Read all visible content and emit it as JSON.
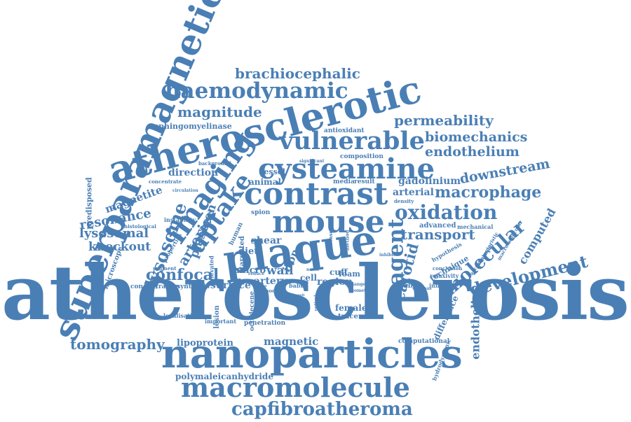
{
  "word_cloud": {
    "color": "#4a7fb5",
    "background": "#ffffff",
    "words": [
      "atherosclerosis",
      "superparamagnetic",
      "atherosclerotic",
      "nanoparticles",
      "plaque",
      "macromolecule",
      "contrast",
      "mouse",
      "cysteamine",
      "capfibroatheroma",
      "haemodynamic",
      "vulnerable",
      "imaging",
      "uptake",
      "oxidation",
      "agent",
      "development",
      "molecular",
      "brachiocephalic",
      "magnitude",
      "permeability",
      "biomechanics",
      "endothelium",
      "macrophage",
      "downstream",
      "transport",
      "lysosome",
      "confocal",
      "tomography",
      "resonance",
      "lysosomal",
      "knockout",
      "magnetite",
      "carotid",
      "arteries",
      "endothelial",
      "computed",
      "plasmon",
      "direction",
      "arterial",
      "gadolinium",
      "surface",
      "wall",
      "artery",
      "region",
      "iron",
      "sphingomyelinase",
      "polymaleicanhydride",
      "lipoprotein",
      "magnetic",
      "female",
      "tracer",
      "micro",
      "cell",
      "foam",
      "cuff",
      "advanced",
      "mechanical",
      "technique",
      "predisposed",
      "microscope",
      "concentration",
      "synthesis",
      "localisation",
      "computational",
      "hydrodynamic",
      "difference",
      "stable",
      "influence",
      "shear",
      "diet",
      "vessel",
      "animal",
      "result",
      "media",
      "antioxidant",
      "composition",
      "spion",
      "human",
      "targeted",
      "penetration",
      "babb",
      "lesion",
      "important",
      "octadecene",
      "instability",
      "properties",
      "elevated",
      "segment",
      "histological",
      "concentrate",
      "background",
      "circulation",
      "significant",
      "density",
      "hypothesis",
      "relaxivity",
      "conclusion",
      "accumulation",
      "characteristic",
      "macromolecular",
      "inhibit",
      "whereas",
      "change",
      "geometry",
      "novel",
      "model",
      "reduce",
      "stress",
      "method",
      "disease",
      "optical",
      "deposit"
    ]
  }
}
